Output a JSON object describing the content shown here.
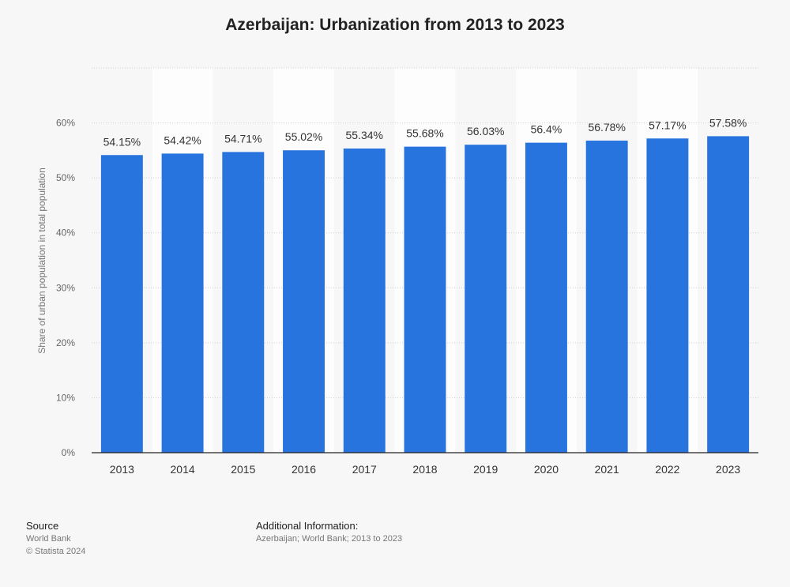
{
  "chart_data": {
    "type": "bar",
    "title": "Azerbaijan: Urbanization from 2013 to 2023",
    "ylabel": "Share of urban population in total population",
    "xlabel": "",
    "categories": [
      "2013",
      "2014",
      "2015",
      "2016",
      "2017",
      "2018",
      "2019",
      "2020",
      "2021",
      "2022",
      "2023"
    ],
    "values": [
      54.15,
      54.42,
      54.71,
      55.02,
      55.34,
      55.68,
      56.03,
      56.4,
      56.78,
      57.17,
      57.58
    ],
    "value_labels": [
      "54.15%",
      "54.42%",
      "54.71%",
      "55.02%",
      "55.34%",
      "55.68%",
      "56.03%",
      "56.4%",
      "56.78%",
      "57.17%",
      "57.58%"
    ],
    "yticks": [
      0,
      10,
      20,
      30,
      40,
      50,
      60
    ],
    "ytick_labels": [
      "0%",
      "10%",
      "20%",
      "30%",
      "40%",
      "50%",
      "60%"
    ],
    "ylim": [
      0,
      70
    ],
    "grid": true,
    "bar_color": "#2874de"
  },
  "footer": {
    "source_heading": "Source",
    "source_name": "World Bank",
    "copyright": "© Statista 2024",
    "additional_heading": "Additional Information:",
    "additional_text": "Azerbaijan; World Bank; 2013 to 2023"
  }
}
